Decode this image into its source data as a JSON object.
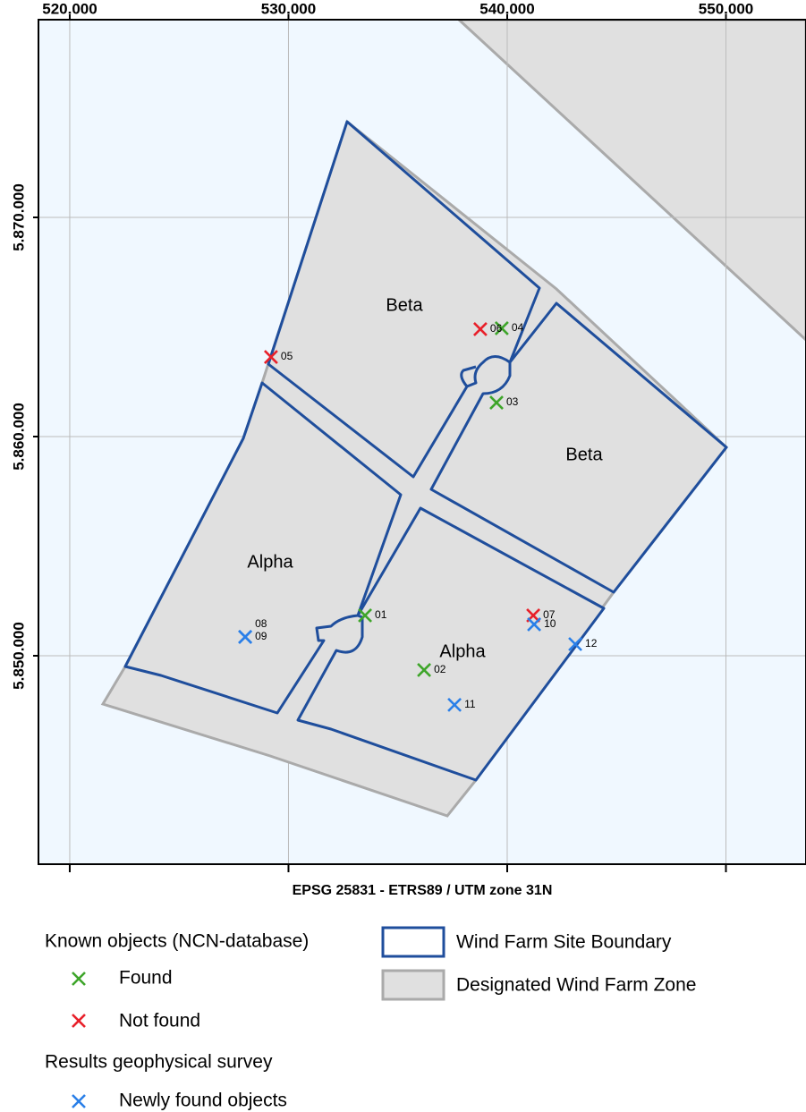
{
  "map": {
    "xlim": [
      518570,
      553660
    ],
    "ylim": [
      5840490,
      5879020
    ],
    "xticks": [
      {
        "value": 520000,
        "label": "520.000"
      },
      {
        "value": 530000,
        "label": "530.000"
      },
      {
        "value": 540000,
        "label": "540.000"
      },
      {
        "value": 550000,
        "label": "550.000"
      }
    ],
    "yticks": [
      {
        "value": 5850000,
        "label": "5.850.000"
      },
      {
        "value": 5860000,
        "label": "5.860.000"
      },
      {
        "value": 5870000,
        "label": "5.870.000"
      }
    ],
    "grid": true,
    "axis_label": "EPSG 25831 - ETRS89 / UTM zone 31N",
    "areas": [
      "Beta",
      "Beta",
      "Alpha",
      "Alpha"
    ],
    "points": [
      {
        "label": "01",
        "x": 533500,
        "y": 5851840,
        "color": "#3ea52a"
      },
      {
        "label": "02",
        "x": 536200,
        "y": 5849350,
        "color": "#3ea52a"
      },
      {
        "label": "03",
        "x": 539510,
        "y": 5861550,
        "color": "#3ea52a"
      },
      {
        "label": "04",
        "x": 539750,
        "y": 5864940,
        "color": "#3ea52a"
      },
      {
        "label": "05",
        "x": 529200,
        "y": 5863630,
        "color": "#e8202a"
      },
      {
        "label": "06",
        "x": 538770,
        "y": 5864900,
        "color": "#e8202a"
      },
      {
        "label": "07",
        "x": 541190,
        "y": 5851840,
        "color": "#e8202a"
      },
      {
        "label": "08",
        "x": 528020,
        "y": 5850860,
        "color": "#2a7fe8"
      },
      {
        "label": "09",
        "x": 528020,
        "y": 5850860,
        "color": "#2a7fe8"
      },
      {
        "label": "10",
        "x": 541230,
        "y": 5851430,
        "color": "#2a7fe8"
      },
      {
        "label": "11",
        "x": 537590,
        "y": 5847760,
        "color": "#2a7fe8"
      },
      {
        "label": "12",
        "x": 543110,
        "y": 5850530,
        "color": "#2a7fe8"
      }
    ],
    "legend": {
      "group1": "Known objects (NCN-database)",
      "found": {
        "label": "Found",
        "color": "#3ea52a"
      },
      "not_found": {
        "label": "Not found",
        "color": "#e8202a"
      },
      "group2": "Results geophysical survey",
      "new": {
        "label": "Newly found objects",
        "color": "#2a7fe8"
      },
      "site": "Wind Farm Site Boundary",
      "zone": "Designated Wind Farm Zone"
    }
  }
}
